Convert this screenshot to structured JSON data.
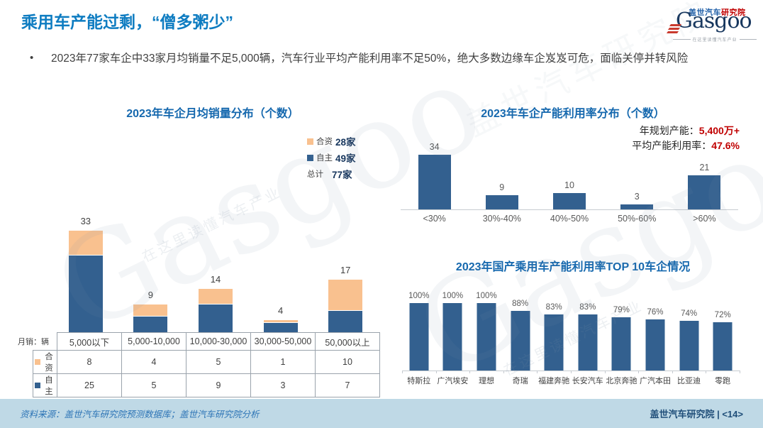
{
  "colors": {
    "title_blue": "#0E7CC1",
    "chart_title_blue": "#1568AE",
    "bar_blue": "#33608F",
    "bar_orange": "#F9C18F",
    "accent_red": "#C00000",
    "footer_bg": "#BFD9E6",
    "footer_left_blue": "#2E75B6",
    "footer_right_navy": "#1F4E79"
  },
  "header": {
    "title": "乘用车产能过剩，“僧多粥少”",
    "bullet_marker": "•",
    "bullet": "2023年77家车企中33家月均销量不足5,000辆，汽车行业平均产能利用率不足50%，绝大多数边缘车企岌岌可危，面临关停并转风险"
  },
  "logo": {
    "brand_cn_blue": "盖世汽车",
    "brand_cn_red": "研究院",
    "wordmark": "Gasgoo",
    "tagline": "在这里读懂汽车产业"
  },
  "watermark": {
    "wordmark": "Gasgoo",
    "tagline": "在这里读懂汽车产业",
    "brand": "盖世汽车研究院"
  },
  "chart_data": [
    {
      "id": "monthly-sales-distribution",
      "type": "bar",
      "stacked": true,
      "title": "2023年车企月均销量分布（个数）",
      "x_axis_unit_label": "月销：辆",
      "categories": [
        "5,000以下",
        "5,000-10,000",
        "10,000-30,000",
        "30,000-50,000",
        "50,000以上"
      ],
      "series": [
        {
          "name": "合资",
          "color": "#F9C18F",
          "values": [
            8,
            4,
            5,
            1,
            10
          ],
          "legend_count": "28家"
        },
        {
          "name": "自主",
          "color": "#33608F",
          "values": [
            25,
            5,
            9,
            3,
            7
          ],
          "legend_count": "49家"
        }
      ],
      "totals": [
        33,
        9,
        14,
        4,
        17
      ],
      "legend_total": {
        "name": "总计",
        "count": "77家"
      },
      "legend_position": "right",
      "grid": false
    },
    {
      "id": "capacity-utilization-distribution",
      "type": "bar",
      "title": "2023年车企产能利用率分布（个数）",
      "categories": [
        "<30%",
        "30%-40%",
        "40%-50%",
        "50%-60%",
        ">60%"
      ],
      "values": [
        34,
        9,
        10,
        3,
        21
      ],
      "bar_color": "#33608F",
      "grid": false,
      "annotations": [
        {
          "label": "年规划产能：",
          "value": "5,400万+"
        },
        {
          "label": "平均产能利用率：",
          "value": "47.6%"
        }
      ]
    },
    {
      "id": "top10-capacity-utilization",
      "type": "bar",
      "title": "2023年国产乘用车产能利用率TOP 10车企情况",
      "categories": [
        "特斯拉",
        "广汽埃安",
        "理想",
        "奇瑞",
        "福建奔驰",
        "长安汽车",
        "北京奔驰",
        "广汽本田",
        "比亚迪",
        "零跑"
      ],
      "values": [
        100,
        100,
        100,
        88,
        83,
        83,
        79,
        76,
        74,
        72
      ],
      "value_suffix": "%",
      "bar_color": "#33608F",
      "grid": false
    }
  ],
  "footer": {
    "source": "资料来源：盖世汽车研究院预测数据库；盖世汽车研究院分析",
    "brand_page": "盖世汽车研究院 | <14>"
  }
}
